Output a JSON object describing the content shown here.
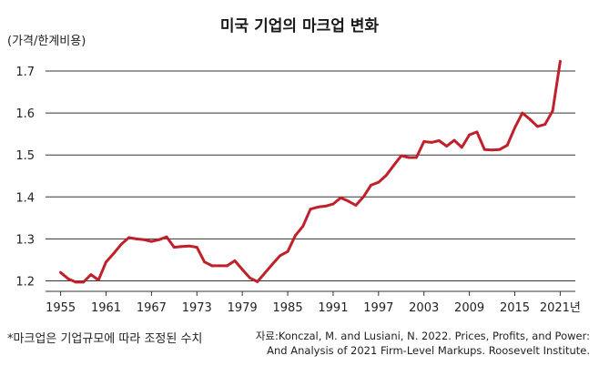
{
  "chart_data": {
    "type": "line",
    "title": "미국 기업의 마크업 변화",
    "ylabel": "(가격/한계비용)",
    "xlabel": "",
    "ylim": [
      1.175,
      1.75
    ],
    "xlim": [
      1953,
      2023
    ],
    "grid": "horizontal",
    "yticks": [
      1.2,
      1.3,
      1.4,
      1.5,
      1.6,
      1.7
    ],
    "ytick_labels": [
      "1.2",
      "1.3",
      "1.4",
      "1.5",
      "1.6",
      "1.7"
    ],
    "xticks": [
      1955,
      1961,
      1967,
      1973,
      1979,
      1985,
      1991,
      1997,
      2003,
      2009,
      2015,
      2021
    ],
    "xtick_labels": [
      "1955",
      "1961",
      "1967",
      "1973",
      "1979",
      "1985",
      "1991",
      "1997",
      "2003",
      "2009",
      "2015",
      "2021년"
    ],
    "series": [
      {
        "name": "마크업",
        "color": "#c0202a",
        "x": [
          1955,
          1956,
          1957,
          1958,
          1959,
          1960,
          1961,
          1962,
          1963,
          1964,
          1965,
          1966,
          1967,
          1968,
          1969,
          1970,
          1971,
          1972,
          1973,
          1974,
          1975,
          1976,
          1977,
          1978,
          1979,
          1980,
          1981,
          1982,
          1983,
          1984,
          1985,
          1986,
          1987,
          1988,
          1989,
          1990,
          1991,
          1992,
          1993,
          1994,
          1995,
          1996,
          1997,
          1998,
          1999,
          2000,
          2001,
          2002,
          2003,
          2004,
          2005,
          2006,
          2007,
          2008,
          2009,
          2010,
          2011,
          2012,
          2013,
          2014,
          2015,
          2016,
          2017,
          2018,
          2019,
          2020,
          2021
        ],
        "y": [
          1.22,
          1.205,
          1.197,
          1.197,
          1.215,
          1.202,
          1.245,
          1.265,
          1.287,
          1.303,
          1.3,
          1.298,
          1.294,
          1.298,
          1.305,
          1.28,
          1.282,
          1.283,
          1.28,
          1.245,
          1.236,
          1.236,
          1.236,
          1.248,
          1.227,
          1.207,
          1.198,
          1.219,
          1.24,
          1.26,
          1.27,
          1.308,
          1.33,
          1.371,
          1.376,
          1.378,
          1.383,
          1.398,
          1.39,
          1.38,
          1.4,
          1.428,
          1.435,
          1.451,
          1.475,
          1.498,
          1.494,
          1.494,
          1.532,
          1.53,
          1.534,
          1.521,
          1.535,
          1.518,
          1.548,
          1.555,
          1.513,
          1.512,
          1.513,
          1.523,
          1.565,
          1.6,
          1.585,
          1.568,
          1.573,
          1.605,
          1.723
        ]
      }
    ]
  },
  "note": "*마크업은 기업규모에 따라 조정된 수치",
  "source": {
    "line1": "자료:Konczal, M. and Lusiani, N. 2022. Prices, Profits, and Power:",
    "line2": "And Analysis of 2021 Firm-Level Markups. Roosevelt Institute."
  }
}
